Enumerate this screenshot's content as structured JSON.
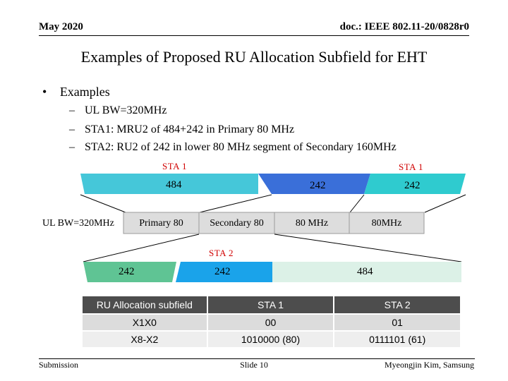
{
  "header": {
    "date": "May 2020",
    "doc_id": "doc.: IEEE 802.11-20/0828r0"
  },
  "title": "Examples of Proposed RU Allocation Subfield for EHT",
  "bullet": {
    "marker": "•",
    "text": "Examples"
  },
  "subbullets": [
    {
      "dash": "–",
      "text": "UL BW=320MHz"
    },
    {
      "dash": "–",
      "text": "STA1: MRU2 of 484+242 in Primary 80 MHz"
    },
    {
      "dash": "–",
      "text": "STA2: RU2 of 242 in lower 80 MHz segment of Secondary 160MHz"
    }
  ],
  "diagram": {
    "sta1_left": "STA 1",
    "sta1_right": "STA 1",
    "top_shapes": {
      "a": "484",
      "b": "242",
      "c": "242"
    },
    "ul_label": "UL BW=320MHz",
    "bands": [
      "Primary 80",
      "Secondary 80",
      "80 MHz",
      "80MHz"
    ],
    "sta2": "STA 2",
    "bottom_shapes": {
      "a": "242",
      "b": "242",
      "c": "484"
    },
    "colors": {
      "light_cyan": "#45c7d9",
      "blue": "#3a6fd9",
      "cyan": "#2fcbcf",
      "band_fill": "#dddddd",
      "green": "#5fc494",
      "sky": "#1aa3ea",
      "pale_green": "#dcf1e7"
    }
  },
  "table": {
    "headers": [
      "RU Allocation subfield",
      "STA 1",
      "STA 2"
    ],
    "rows": [
      [
        "X1X0",
        "00",
        "01"
      ],
      [
        "X8-X2",
        "1010000 (80)",
        "0111101 (61)"
      ]
    ]
  },
  "footer": {
    "left": "Submission",
    "center": "Slide 10",
    "right": "Myeongjin Kim, Samsung"
  }
}
